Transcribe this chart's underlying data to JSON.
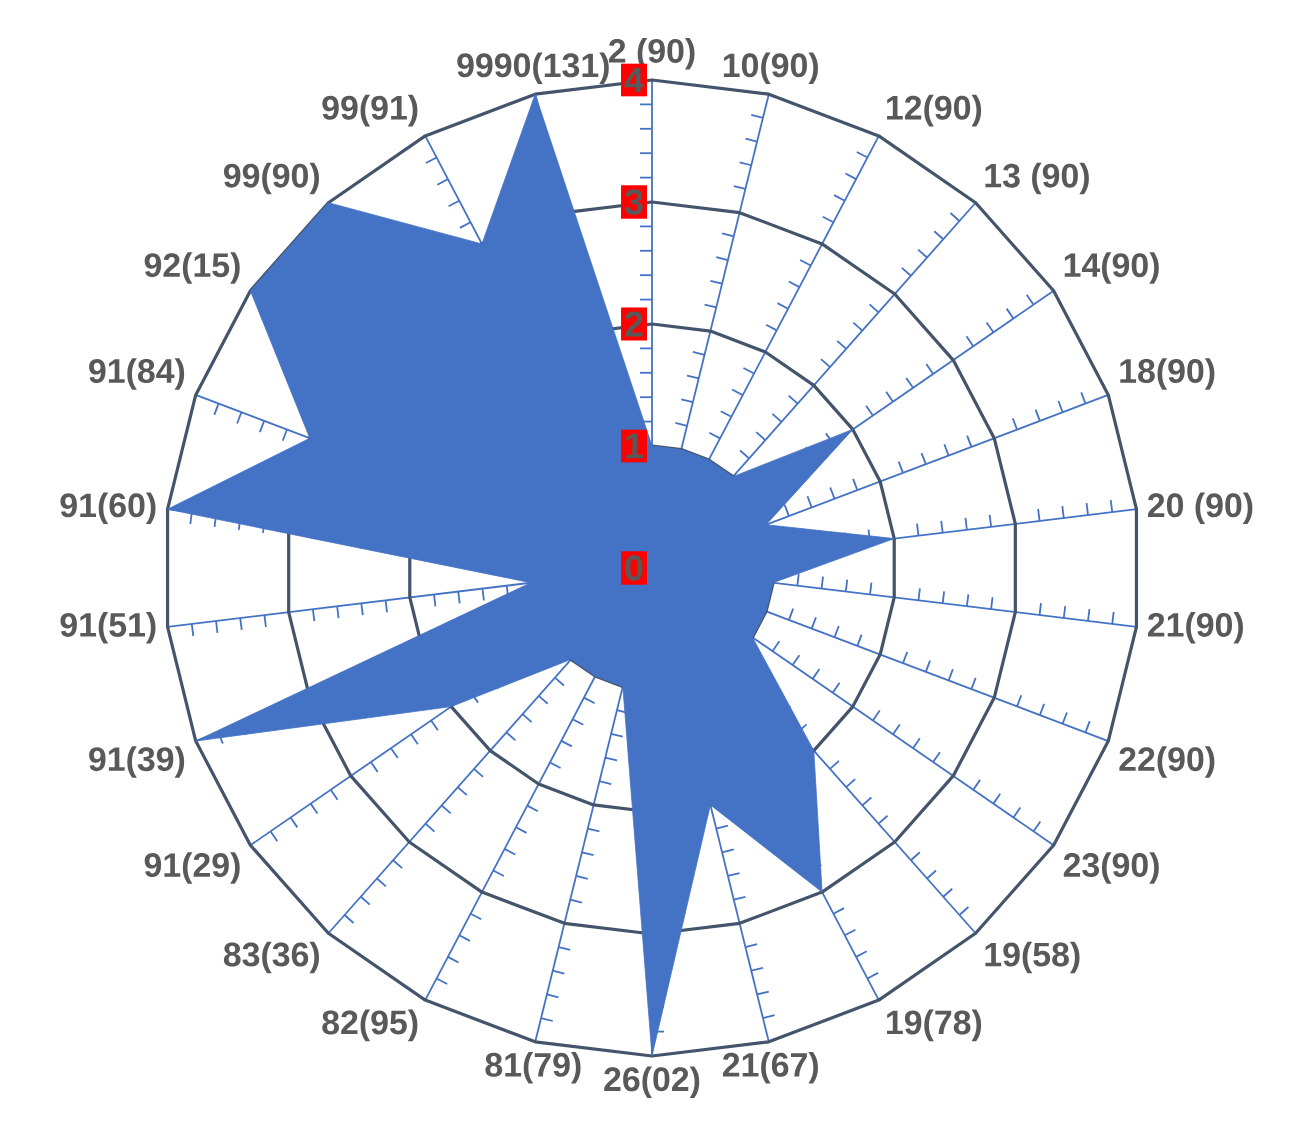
{
  "chart_data": {
    "type": "radar",
    "categories": [
      "2 (90)",
      "10(90)",
      "12(90)",
      "13 (90)",
      "14(90)",
      "18(90)",
      "20 (90)",
      "21(90)",
      "22(90)",
      "23(90)",
      "19(58)",
      "19(78)",
      "21(67)",
      "26(02)",
      "81(79)",
      "82(95)",
      "83(36)",
      "91(29)",
      "91(39)",
      "91(51)",
      "91(60)",
      "91(84)",
      "92(15)",
      "99(90)",
      "99(91)",
      "9990(131)"
    ],
    "series": [
      {
        "color": "#4472c4",
        "values": [
          1,
          1,
          1,
          1,
          2,
          1,
          2,
          1,
          1,
          1,
          2,
          3,
          2,
          4,
          1,
          1,
          1,
          2,
          4,
          1,
          4,
          3,
          4,
          4,
          3,
          4
        ]
      }
    ],
    "ylim": [
      0,
      4
    ],
    "yticks": [
      0,
      1,
      2,
      3,
      4
    ],
    "grid": true
  }
}
